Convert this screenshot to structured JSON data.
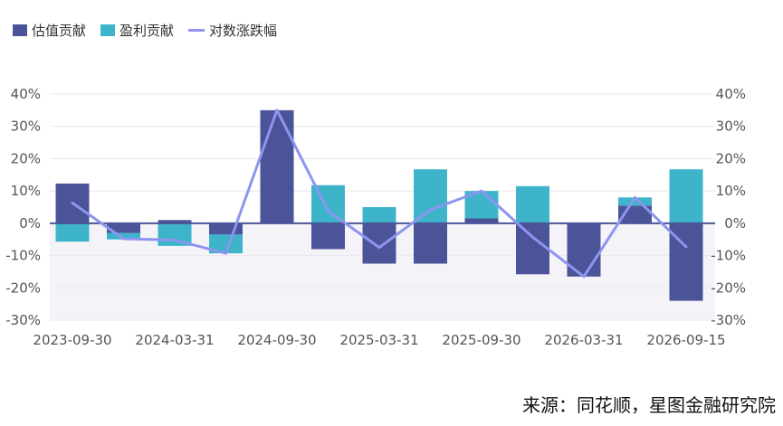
{
  "colors": {
    "valuation": "#4b5499",
    "earnings": "#3eb4cb",
    "log_return": "#8d95ee",
    "zero_line": "#4b5499",
    "negative_band": "#f4f4f8",
    "grid": "#e8e8ee"
  },
  "chart_data": {
    "type": "bar",
    "stacked": true,
    "legend": [
      {
        "key": "valuation",
        "label": "估值贡献",
        "marker": "box"
      },
      {
        "key": "earnings",
        "label": "盈利贡献",
        "marker": "box"
      },
      {
        "key": "log_return",
        "label": "对数涨跌幅",
        "marker": "line"
      }
    ],
    "legend_position": "top-left",
    "x_tick_labels": [
      "2023-09-30",
      "2024-03-31",
      "2024-09-30",
      "2025-03-31",
      "2025-09-30",
      "2026-03-31",
      "2026-09-15"
    ],
    "y_ticks": [
      -30,
      -20,
      -10,
      0,
      10,
      20,
      30,
      40
    ],
    "y_tick_labels": [
      "-30%",
      "-20%",
      "-10%",
      "0%",
      "10%",
      "20%",
      "30%",
      "40%"
    ],
    "ylim": [
      -30,
      40
    ],
    "periods": 13,
    "series": [
      {
        "name": "估值贡献",
        "key": "valuation",
        "type": "bar",
        "values": [
          12.3,
          -3.0,
          1.0,
          -3.5,
          35.0,
          -8.0,
          -12.5,
          -12.5,
          1.5,
          -15.8,
          -16.5,
          5.5,
          -24.0
        ]
      },
      {
        "name": "盈利贡献",
        "key": "earnings",
        "type": "bar",
        "values": [
          -5.7,
          -2.0,
          -7.0,
          -5.8,
          0.0,
          11.8,
          5.0,
          16.7,
          8.5,
          11.5,
          0.0,
          2.5,
          16.7
        ]
      },
      {
        "name": "对数涨跌幅",
        "key": "log_return",
        "type": "line",
        "values": [
          6.3,
          -4.8,
          -5.2,
          -9.3,
          35.0,
          3.8,
          -7.5,
          4.2,
          10.0,
          -4.3,
          -16.5,
          8.0,
          -7.3
        ]
      }
    ],
    "title": "",
    "xlabel": "",
    "ylabel": "",
    "secondary_y_axis": true
  },
  "source_text": "来源：同花顺，星图金融研究院"
}
